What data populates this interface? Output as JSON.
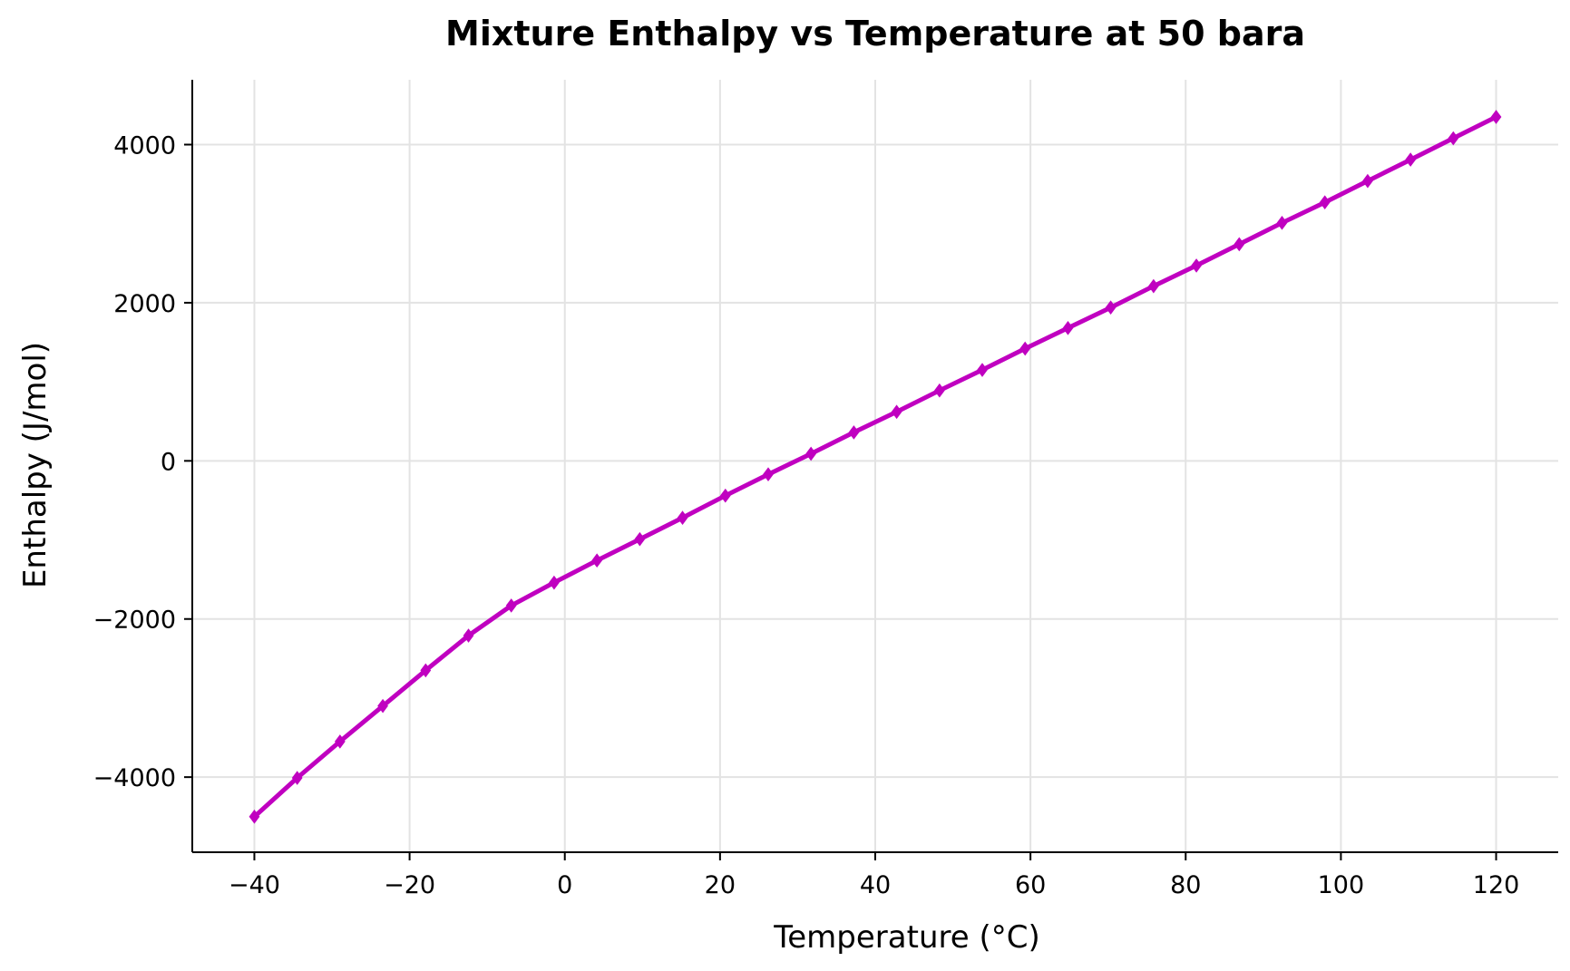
{
  "chart_data": {
    "type": "line",
    "title": "Mixture Enthalpy vs Temperature at 50 bara",
    "xlabel": "Temperature (°C)",
    "ylabel": "Enthalpy (J/mol)",
    "xlim": [
      -48,
      128
    ],
    "ylim": [
      -4950,
      4820
    ],
    "xticks": [
      -40,
      -20,
      0,
      20,
      40,
      60,
      80,
      100,
      120
    ],
    "xtick_labels": [
      "−40",
      "−20",
      "0",
      "20",
      "40",
      "60",
      "80",
      "100",
      "120"
    ],
    "yticks": [
      -4000,
      -2000,
      0,
      2000,
      4000
    ],
    "ytick_labels": [
      "−4000",
      "−2000",
      "0",
      "2000",
      "4000"
    ],
    "grid": true,
    "series": [
      {
        "color": "#c000c0",
        "marker": "diamond",
        "x": [
          -40,
          -34.48,
          -28.97,
          -23.45,
          -17.93,
          -12.41,
          -6.9,
          -1.38,
          4.14,
          9.66,
          15.17,
          20.69,
          26.21,
          31.72,
          37.24,
          42.76,
          48.28,
          53.79,
          59.31,
          64.83,
          70.34,
          75.86,
          81.38,
          86.9,
          92.41,
          97.93,
          103.45,
          108.97,
          114.48,
          120
        ],
        "y": [
          -4500,
          -4010,
          -3550,
          -3100,
          -2650,
          -2210,
          -1830,
          -1540,
          -1260,
          -990,
          -720,
          -440,
          -170,
          90,
          360,
          620,
          890,
          1150,
          1420,
          1680,
          1940,
          2210,
          2470,
          2740,
          3010,
          3270,
          3540,
          3810,
          4080,
          4350
        ]
      }
    ]
  }
}
